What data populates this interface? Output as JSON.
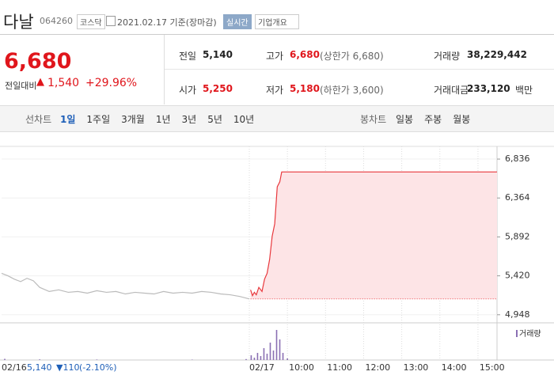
{
  "header": {
    "name": "다날",
    "code": "064260",
    "market": "코스닥",
    "date": "2021.02.17 기준(장마감)",
    "realtime": "실시간",
    "company": "기업개요"
  },
  "price": {
    "current": "6,680",
    "change_label": "전일대비",
    "change": "1,540",
    "change_pct": "+29.96%"
  },
  "summary": {
    "rows": [
      [
        {
          "label": "전일",
          "value": "5,140"
        },
        {
          "label": "고가",
          "value": "6,680",
          "note": "(상한가 6,680)"
        },
        {
          "label": "거래량",
          "value": "38,229,442"
        }
      ],
      [
        {
          "label": "시가",
          "value": "5,250"
        },
        {
          "label": "저가",
          "value": "5,180",
          "note": "(하한가 3,600)"
        },
        {
          "label": "거래대금",
          "value": "233,120",
          "unit": "백만"
        }
      ]
    ]
  },
  "tabs": {
    "line_label": "선차트",
    "line": [
      "1일",
      "1주일",
      "3개월",
      "1년",
      "3년",
      "5년",
      "10년"
    ],
    "candle_label": "봉차트",
    "candle": [
      "일봉",
      "주봉",
      "월봉"
    ]
  },
  "chart_data": {
    "type": "line",
    "xlim": [
      0,
      780
    ],
    "ylim": [
      4850,
      6990
    ],
    "xticks": [
      {
        "value": 390,
        "label": "02/17"
      },
      {
        "value": 450,
        "label": "10:00"
      },
      {
        "value": 510,
        "label": "11:00"
      },
      {
        "value": 570,
        "label": "12:00"
      },
      {
        "value": 630,
        "label": "13:00"
      },
      {
        "value": 690,
        "label": "14:00"
      },
      {
        "value": 750,
        "label": "15:00"
      }
    ],
    "yticks": [
      {
        "value": 6836,
        "label": "6,836"
      },
      {
        "value": 6364,
        "label": "6,364"
      },
      {
        "value": 5892,
        "label": "5,892"
      },
      {
        "value": 5420,
        "label": "5,420"
      },
      {
        "value": 4948,
        "label": "4,948"
      }
    ],
    "baseline": 5140,
    "series": [
      {
        "color": "#bbbbbb",
        "x": [
          0,
          10,
          20,
          30,
          40,
          50,
          60,
          75,
          90,
          105,
          120,
          135,
          150,
          165,
          180,
          195,
          210,
          225,
          240,
          255,
          270,
          285,
          300,
          315,
          330,
          345,
          360,
          375,
          390
        ],
        "values": [
          5450,
          5420,
          5380,
          5350,
          5390,
          5360,
          5280,
          5230,
          5250,
          5220,
          5230,
          5210,
          5240,
          5220,
          5230,
          5200,
          5220,
          5210,
          5200,
          5230,
          5210,
          5220,
          5210,
          5230,
          5220,
          5200,
          5190,
          5170,
          5140
        ]
      },
      {
        "color": "#e8383d",
        "x": [
          392,
          395,
          398,
          401,
          405,
          410,
          414,
          418,
          422,
          426,
          430,
          434,
          438,
          441,
          450,
          500,
          600,
          700,
          780
        ],
        "values": [
          5250,
          5180,
          5220,
          5190,
          5280,
          5230,
          5380,
          5450,
          5620,
          5900,
          6050,
          6500,
          6560,
          6680,
          6680,
          6680,
          6680,
          6680,
          6680
        ]
      }
    ],
    "volume": {
      "name": "거래량",
      "color": "#8a6fb3",
      "vlim": [
        0,
        4000000
      ],
      "x": [
        5,
        60,
        150,
        300,
        385,
        393,
        398,
        403,
        408,
        413,
        418,
        423,
        428,
        433,
        438,
        443,
        450
      ],
      "values": [
        150000,
        80000,
        60000,
        50000,
        120000,
        600000,
        300000,
        900000,
        500000,
        1500000,
        800000,
        2200000,
        1200000,
        3800000,
        2600000,
        900000,
        200000
      ]
    },
    "footer": {
      "date": "02/16",
      "close": "5,140",
      "change": "▼110",
      "pct": "(-2.10%)"
    }
  }
}
